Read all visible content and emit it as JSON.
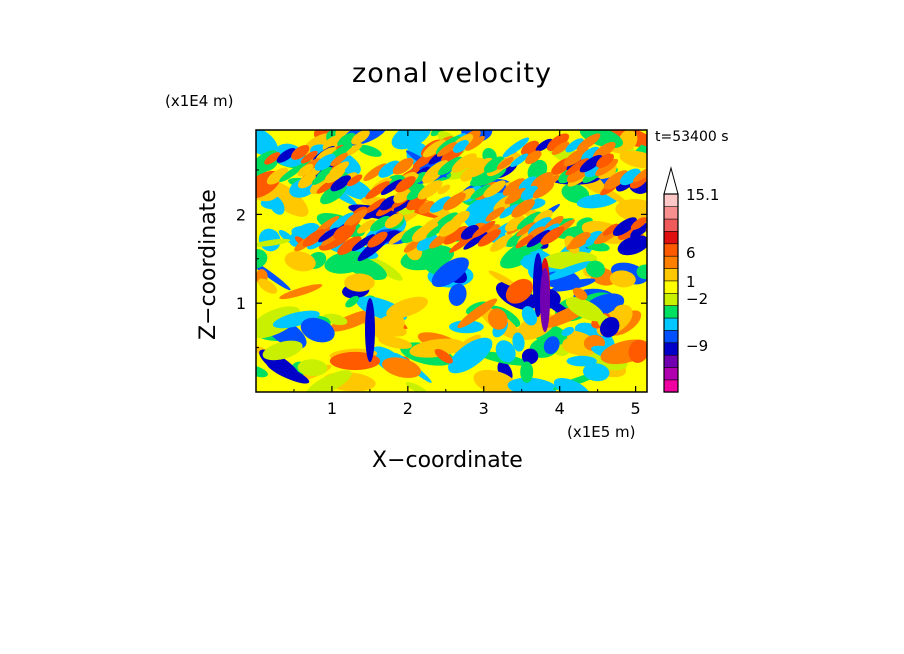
{
  "chart_data": {
    "type": "heatmap",
    "title": "zonal velocity",
    "xlabel": "X−coordinate",
    "ylabel": "Z−coordinate",
    "x_unit": "(x1E5 m)",
    "y_unit": "(x1E4 m)",
    "time_label": "t=53400 s",
    "xlim": [
      0,
      5.15
    ],
    "ylim": [
      0,
      2.95
    ],
    "x_ticks": [
      "1",
      "2",
      "3",
      "4",
      "5"
    ],
    "x_tick_values": [
      1,
      2,
      3,
      4,
      5
    ],
    "y_ticks": [
      "1",
      "2"
    ],
    "y_tick_values": [
      1,
      2
    ],
    "grid": false,
    "colorbar": {
      "position": "right",
      "labels": [
        "15.1",
        "6",
        "1",
        "−2",
        "−9"
      ],
      "label_values": [
        15.1,
        6,
        1,
        -2,
        -9
      ],
      "colors": [
        "#f000a0",
        "#b000b0",
        "#7000b0",
        "#0000c8",
        "#0050ff",
        "#00c8ff",
        "#00e060",
        "#c8f000",
        "#ffff00",
        "#ffc800",
        "#ff8000",
        "#ff5a00",
        "#e01010",
        "#f05a5a",
        "#f89090",
        "#ffc8c8"
      ],
      "extend": "max"
    }
  }
}
